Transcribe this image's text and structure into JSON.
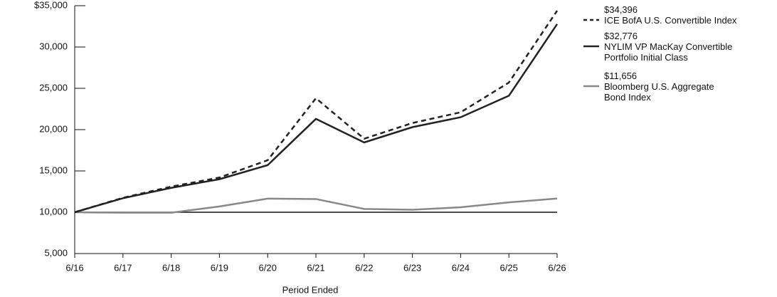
{
  "chart_data": {
    "type": "line",
    "x_label": "Period Ended",
    "categories": [
      "6/16",
      "6/17",
      "6/18",
      "6/19",
      "6/20",
      "6/21",
      "6/22",
      "6/23",
      "6/24",
      "6/25",
      "6/26"
    ],
    "series": [
      {
        "name": "ICE BofA U.S. Convertible Index",
        "color": "#222222",
        "style": "dashed",
        "values": [
          10000,
          11750,
          13100,
          14200,
          16300,
          23800,
          18900,
          20800,
          22100,
          25700,
          34396
        ],
        "value_labels": [
          null,
          null,
          null,
          null,
          null,
          null,
          null,
          null,
          null,
          null,
          "$34,396"
        ]
      },
      {
        "name": "NYLIM VP MacKay Convertible Portfolio Initial Class",
        "color": "#222222",
        "style": "solid",
        "values": [
          10000,
          11700,
          12950,
          14000,
          15700,
          21300,
          18450,
          20300,
          21500,
          24100,
          32776
        ],
        "value_labels": [
          null,
          null,
          null,
          null,
          null,
          null,
          null,
          null,
          null,
          null,
          "$32,776"
        ]
      },
      {
        "name": "Bloomberg U.S. Aggregate Bond Index",
        "color": "#888888",
        "style": "solid",
        "values": [
          10000,
          9950,
          9950,
          10700,
          11650,
          11600,
          10400,
          10300,
          10600,
          11200,
          11656
        ],
        "value_labels": [
          null,
          null,
          null,
          null,
          null,
          null,
          null,
          null,
          null,
          null,
          "$11,656"
        ]
      }
    ],
    "ylim": [
      5000,
      35000
    ],
    "yticks": [
      {
        "value": 5000,
        "label": "5,000"
      },
      {
        "value": 10000,
        "label": "10,000"
      },
      {
        "value": 15000,
        "label": "15,000"
      },
      {
        "value": 20000,
        "label": "20,000"
      },
      {
        "value": 25000,
        "label": "25,000"
      },
      {
        "value": 30000,
        "label": "30,000"
      },
      {
        "value": 35000,
        "label": "$35,000"
      }
    ],
    "reference_line": 10000,
    "legend": "right"
  }
}
